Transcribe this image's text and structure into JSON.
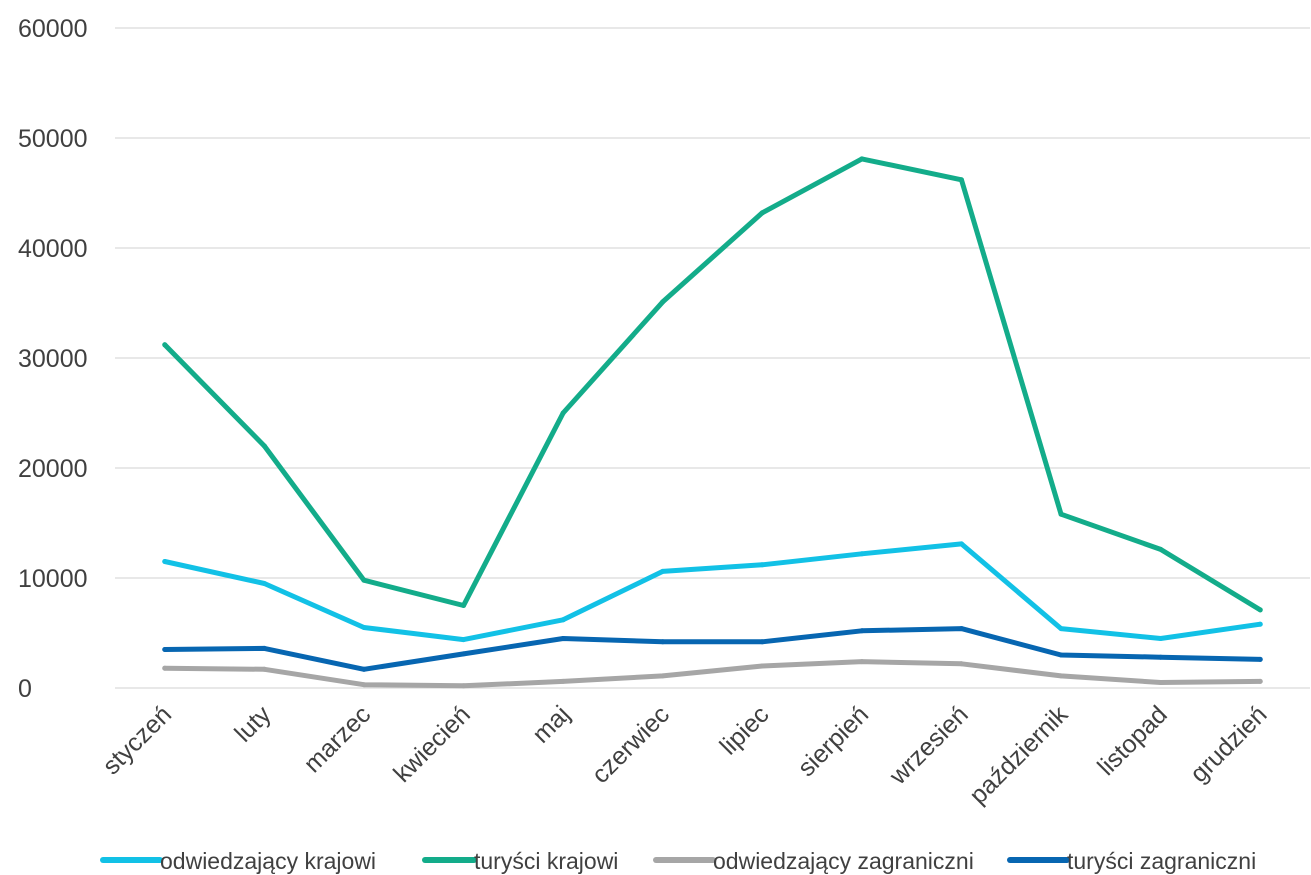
{
  "chart_data": {
    "type": "line",
    "title": "",
    "xlabel": "",
    "ylabel": "",
    "categories": [
      "styczeń",
      "luty",
      "marzec",
      "kwiecień",
      "maj",
      "czerwiec",
      "lipiec",
      "sierpień",
      "wrzesień",
      "październik",
      "listopad",
      "grudzień"
    ],
    "ylim": [
      0,
      60000
    ],
    "y_ticks": [
      "0",
      "10000",
      "20000",
      "30000",
      "40000",
      "50000",
      "60000"
    ],
    "grid": true,
    "legend_position": "bottom",
    "series": [
      {
        "name": "odwiedzający krajowi",
        "color": "#12C1E6",
        "values": [
          11500,
          9500,
          5500,
          4400,
          6200,
          10600,
          11200,
          12200,
          13100,
          5400,
          4500,
          5800
        ]
      },
      {
        "name": "turyści krajowi",
        "color": "#13AC8A",
        "values": [
          31200,
          22000,
          9800,
          7500,
          25000,
          35100,
          43200,
          48100,
          46200,
          15800,
          12600,
          7100
        ]
      },
      {
        "name": "odwiedzający zagraniczni",
        "color": "#A6A6A6",
        "values": [
          1800,
          1700,
          300,
          200,
          600,
          1100,
          2000,
          2400,
          2200,
          1100,
          500,
          600
        ]
      },
      {
        "name": "turyści zagraniczni",
        "color": "#0766B1",
        "values": [
          3500,
          3600,
          1700,
          3100,
          4500,
          4200,
          4200,
          5200,
          5400,
          3000,
          2800,
          2600
        ]
      }
    ]
  }
}
